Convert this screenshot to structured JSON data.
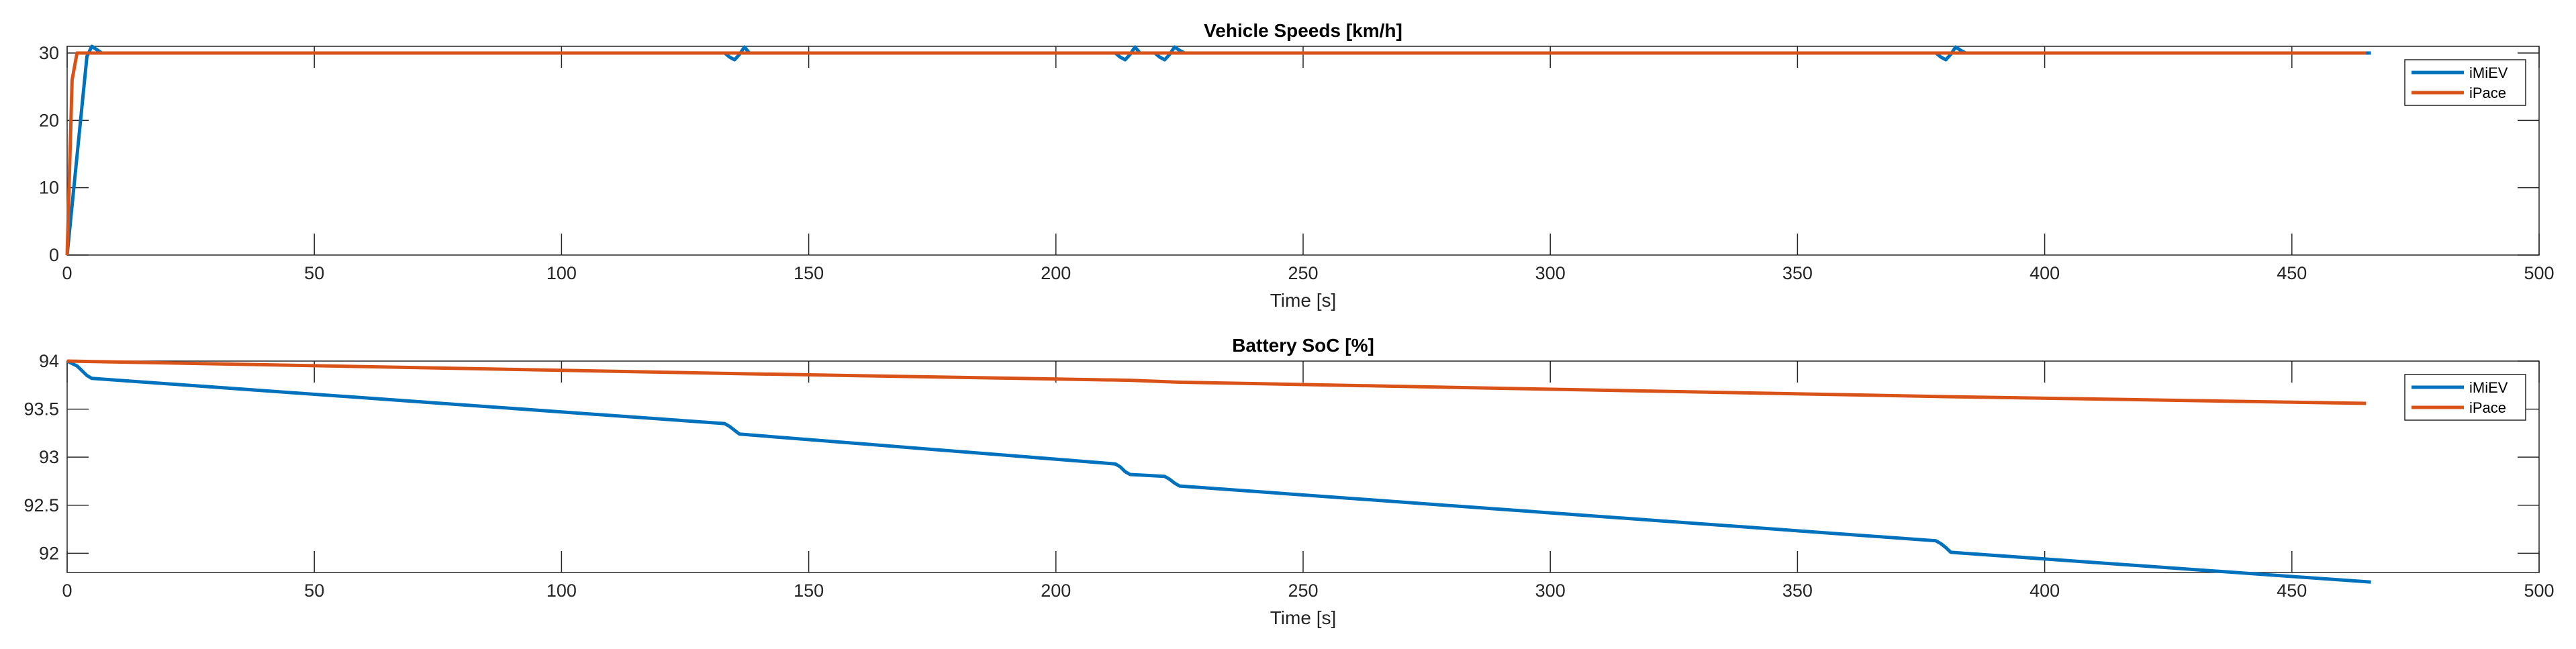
{
  "chart_data": [
    {
      "type": "line",
      "title": "Vehicle Speeds [km/h]",
      "xlabel": "Time [s]",
      "ylabel": "",
      "xlim": [
        0,
        500
      ],
      "ylim": [
        0,
        31
      ],
      "xticks": [
        0,
        50,
        100,
        150,
        200,
        250,
        300,
        350,
        400,
        450,
        500
      ],
      "yticks": [
        0,
        10,
        20,
        30
      ],
      "grid": false,
      "legend_position": "top-right",
      "series": [
        {
          "name": "iMiEV",
          "color": "#0072BD",
          "x": [
            0,
            4,
            5,
            6,
            7,
            8,
            133,
            134,
            135,
            136,
            137,
            138,
            212,
            213,
            214,
            215,
            216,
            217,
            220,
            221,
            222,
            223,
            224,
            225,
            226,
            378,
            379,
            380,
            381,
            382,
            383,
            384,
            466
          ],
          "y": [
            0,
            29.5,
            31,
            30.5,
            30,
            30,
            30,
            29.4,
            29,
            29.8,
            30.9,
            30,
            30,
            29.4,
            29,
            29.8,
            30.9,
            30,
            30,
            29.4,
            29,
            29.8,
            30.9,
            30.4,
            30,
            30,
            29.4,
            29,
            29.8,
            30.9,
            30.4,
            30,
            30
          ]
        },
        {
          "name": "iPace",
          "color": "#D95319",
          "x": [
            0,
            1,
            2,
            3,
            465
          ],
          "y": [
            0,
            26,
            30,
            30,
            30
          ]
        }
      ]
    },
    {
      "type": "line",
      "title": "Battery SoC [%]",
      "xlabel": "Time [s]",
      "ylabel": "",
      "xlim": [
        0,
        500
      ],
      "ylim": [
        91.8,
        94
      ],
      "xticks": [
        0,
        50,
        100,
        150,
        200,
        250,
        300,
        350,
        400,
        450,
        500
      ],
      "yticks": [
        92,
        92.5,
        93,
        93.5,
        94
      ],
      "ytick_labels": [
        "92",
        "92.5",
        "93",
        "93.5",
        "94"
      ],
      "grid": false,
      "legend_position": "top-right",
      "series": [
        {
          "name": "iMiEV",
          "color": "#0072BD",
          "x": [
            0,
            2,
            4,
            5,
            133,
            134,
            135,
            136,
            212,
            213,
            214,
            215,
            222,
            223,
            224,
            225,
            378,
            379,
            380,
            381,
            466
          ],
          "y": [
            94,
            93.95,
            93.85,
            93.82,
            93.35,
            93.32,
            93.28,
            93.24,
            92.93,
            92.9,
            92.85,
            92.82,
            92.8,
            92.77,
            92.73,
            92.7,
            92.13,
            92.1,
            92.06,
            92.01,
            91.7
          ]
        },
        {
          "name": "iPace",
          "color": "#D95319",
          "x": [
            0,
            135,
            215,
            225,
            380,
            465
          ],
          "y": [
            94,
            93.87,
            93.8,
            93.78,
            93.63,
            93.56
          ]
        }
      ]
    }
  ]
}
